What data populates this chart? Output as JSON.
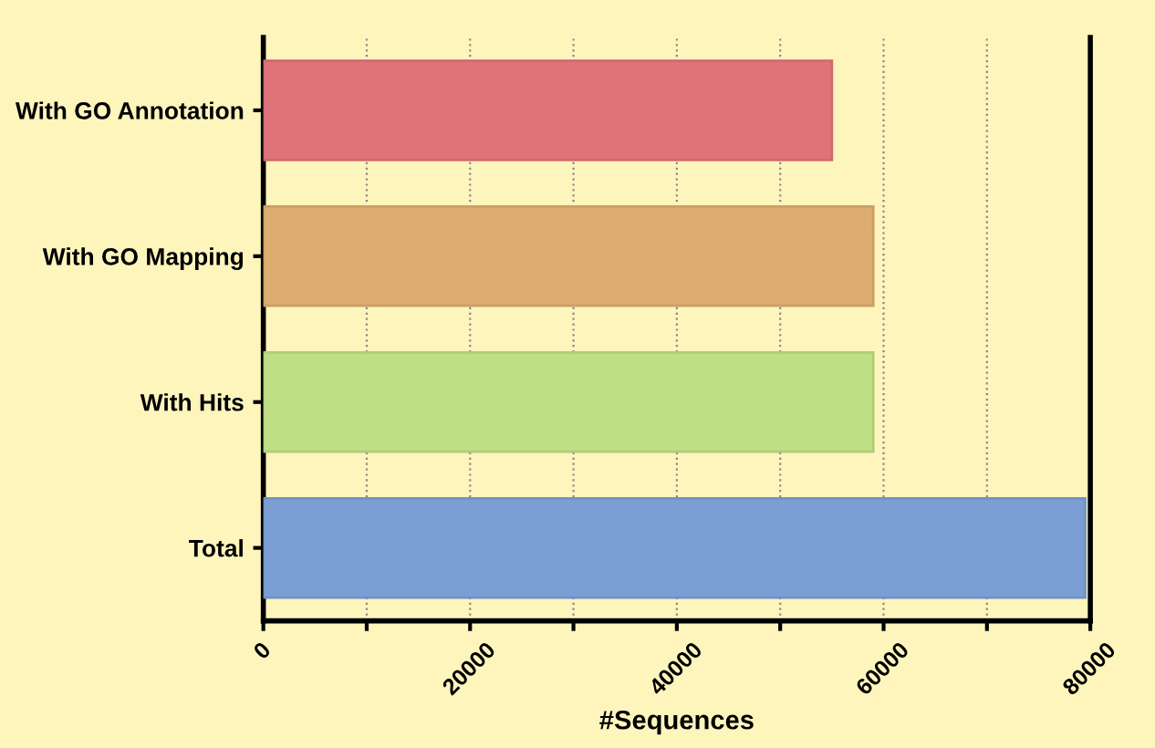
{
  "chart_data": {
    "type": "bar",
    "orientation": "horizontal",
    "xlabel": "#Sequences",
    "categories": [
      "With GO Annotation",
      "With GO Mapping",
      "With Hits",
      "Total"
    ],
    "values": [
      55000,
      59000,
      59000,
      79500
    ],
    "colors": [
      "#e0737a",
      "#dcad6e",
      "#bfdf85",
      "#7b9fd4"
    ],
    "xlim": [
      0,
      80000
    ],
    "xticks": [
      0,
      {
        "value": 10000,
        "label": null
      },
      20000,
      {
        "value": 30000,
        "label": null
      },
      40000,
      {
        "value": 50000,
        "label": null
      },
      60000,
      {
        "value": 70000,
        "label": null
      },
      80000
    ],
    "grid": "x",
    "legend": false
  }
}
